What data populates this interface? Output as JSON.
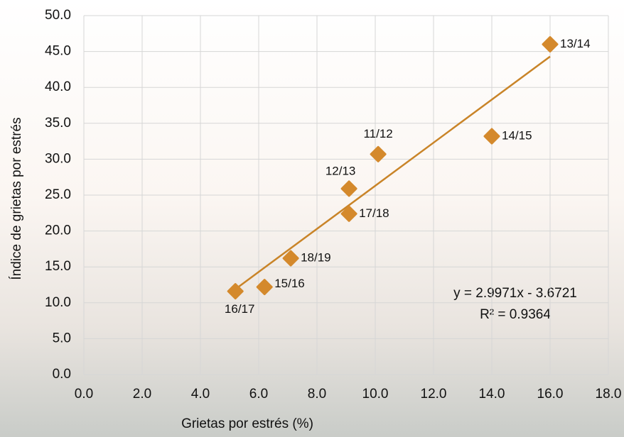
{
  "chart_data": {
    "type": "scatter",
    "x_label": "Grietas por estrés (%)",
    "y_label": "Índice de grietas por estrés",
    "point_labels": [
      "13/14",
      "14/15",
      "11/12",
      "12/13",
      "17/18",
      "18/19",
      "15/16",
      "16/17"
    ],
    "x": [
      16.0,
      14.0,
      10.1,
      9.1,
      9.1,
      7.1,
      6.2,
      5.2
    ],
    "values": [
      46.0,
      33.2,
      30.7,
      25.9,
      22.4,
      16.2,
      12.2,
      11.6
    ],
    "color": "#d4892c",
    "trendline": {
      "x": [
        5.2,
        16.0
      ],
      "y": [
        11.9,
        44.3
      ],
      "color": "#c98428",
      "equation": "y = 2.9971x - 3.6721",
      "r_squared": "R² = 0.9364"
    },
    "xlim": [
      0,
      18
    ],
    "ylim": [
      0,
      50
    ],
    "xticks": [
      {
        "value": 0,
        "label": "0.0"
      },
      {
        "value": 2,
        "label": "2.0"
      },
      {
        "value": 4,
        "label": "4.0"
      },
      {
        "value": 6,
        "label": "6.0"
      },
      {
        "value": 8,
        "label": "8.0"
      },
      {
        "value": 10,
        "label": "10.0"
      },
      {
        "value": 12,
        "label": "12.0"
      },
      {
        "value": 14,
        "label": "14.0"
      },
      {
        "value": 16,
        "label": "16.0"
      },
      {
        "value": 18,
        "label": "18.0"
      }
    ],
    "yticks": [
      {
        "value": 0,
        "label": "0.0"
      },
      {
        "value": 5,
        "label": "5.0"
      },
      {
        "value": 10,
        "label": "10.0"
      },
      {
        "value": 15,
        "label": "15.0"
      },
      {
        "value": 20,
        "label": "20.0"
      },
      {
        "value": 25,
        "label": "25.0"
      },
      {
        "value": 30,
        "label": "30.0"
      },
      {
        "value": 35,
        "label": "35.0"
      },
      {
        "value": 40,
        "label": "40.0"
      },
      {
        "value": 45,
        "label": "45.0"
      },
      {
        "value": 50,
        "label": "50.0"
      }
    ],
    "grid": true
  }
}
